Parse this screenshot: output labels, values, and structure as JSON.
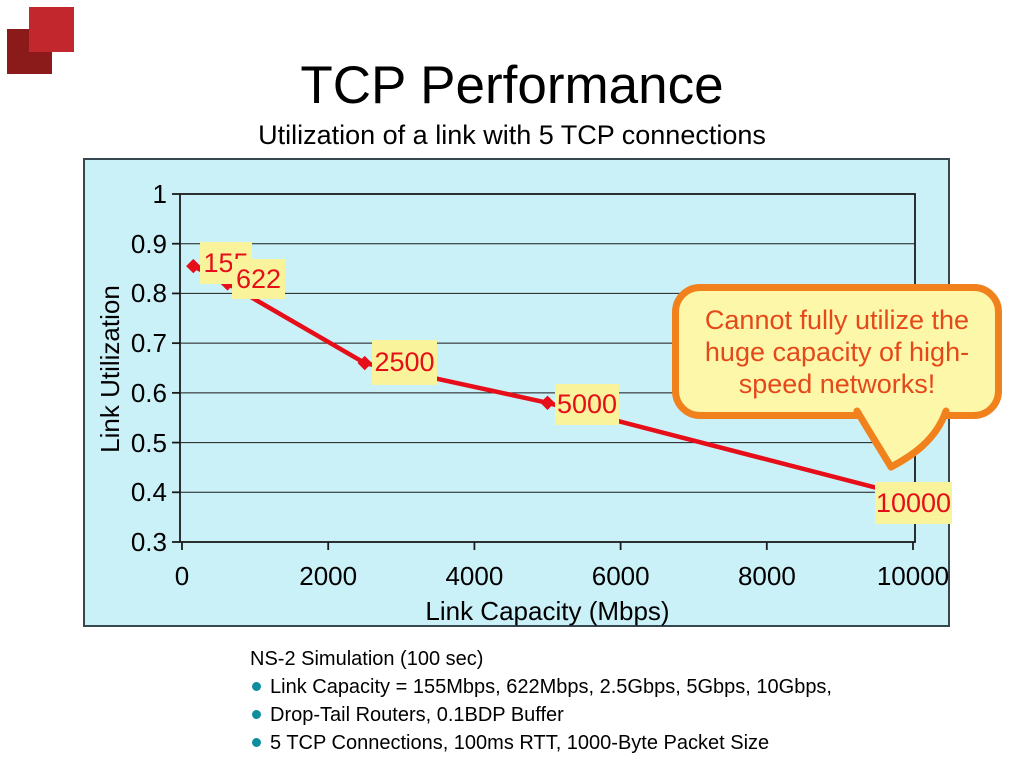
{
  "slide": {
    "title": "TCP Performance",
    "subtitle": "Utilization of a link with 5 TCP connections"
  },
  "logo": {
    "front_color": "#c1272d",
    "back_color": "#8b1a1a"
  },
  "chart_data": {
    "type": "line",
    "title": "Utilization of a link with 5 TCP connections",
    "xlabel": "Link Capacity (Mbps)",
    "ylabel": "Link Utilization",
    "x": [
      155,
      622,
      2500,
      5000,
      10000
    ],
    "values": [
      0.855,
      0.82,
      0.66,
      0.58,
      0.39
    ],
    "point_labels": [
      "155",
      "622",
      "2500",
      "5000",
      "10000"
    ],
    "x_ticks": [
      0,
      2000,
      4000,
      6000,
      8000,
      10000
    ],
    "y_ticks": [
      1,
      0.9,
      0.8,
      0.7,
      0.6,
      0.5,
      0.4,
      0.3
    ],
    "xlim": [
      0,
      10000
    ],
    "ylim": [
      0.3,
      1.0
    ],
    "grid": true,
    "legend": false,
    "marker": "diamond",
    "line_color": "#e60e19",
    "plot_bg": "#cbf1f8",
    "label_bg": "#f9f49b"
  },
  "callout": {
    "lines": [
      "Cannot fully utilize the",
      "huge capacity of high-",
      "speed networks!"
    ],
    "fill": "#fdf7a9",
    "border_color": "#f0811c",
    "text_color": "#e4491b"
  },
  "notes": {
    "heading": "NS-2 Simulation (100 sec)",
    "bullets": [
      "Link Capacity = 155Mbps, 622Mbps, 2.5Gbps, 5Gbps, 10Gbps,",
      "Drop-Tail Routers, 0.1BDP Buffer",
      "5 TCP Connections, 100ms RTT, 1000-Byte Packet Size"
    ],
    "bullet_color": "#0e8f9e"
  }
}
